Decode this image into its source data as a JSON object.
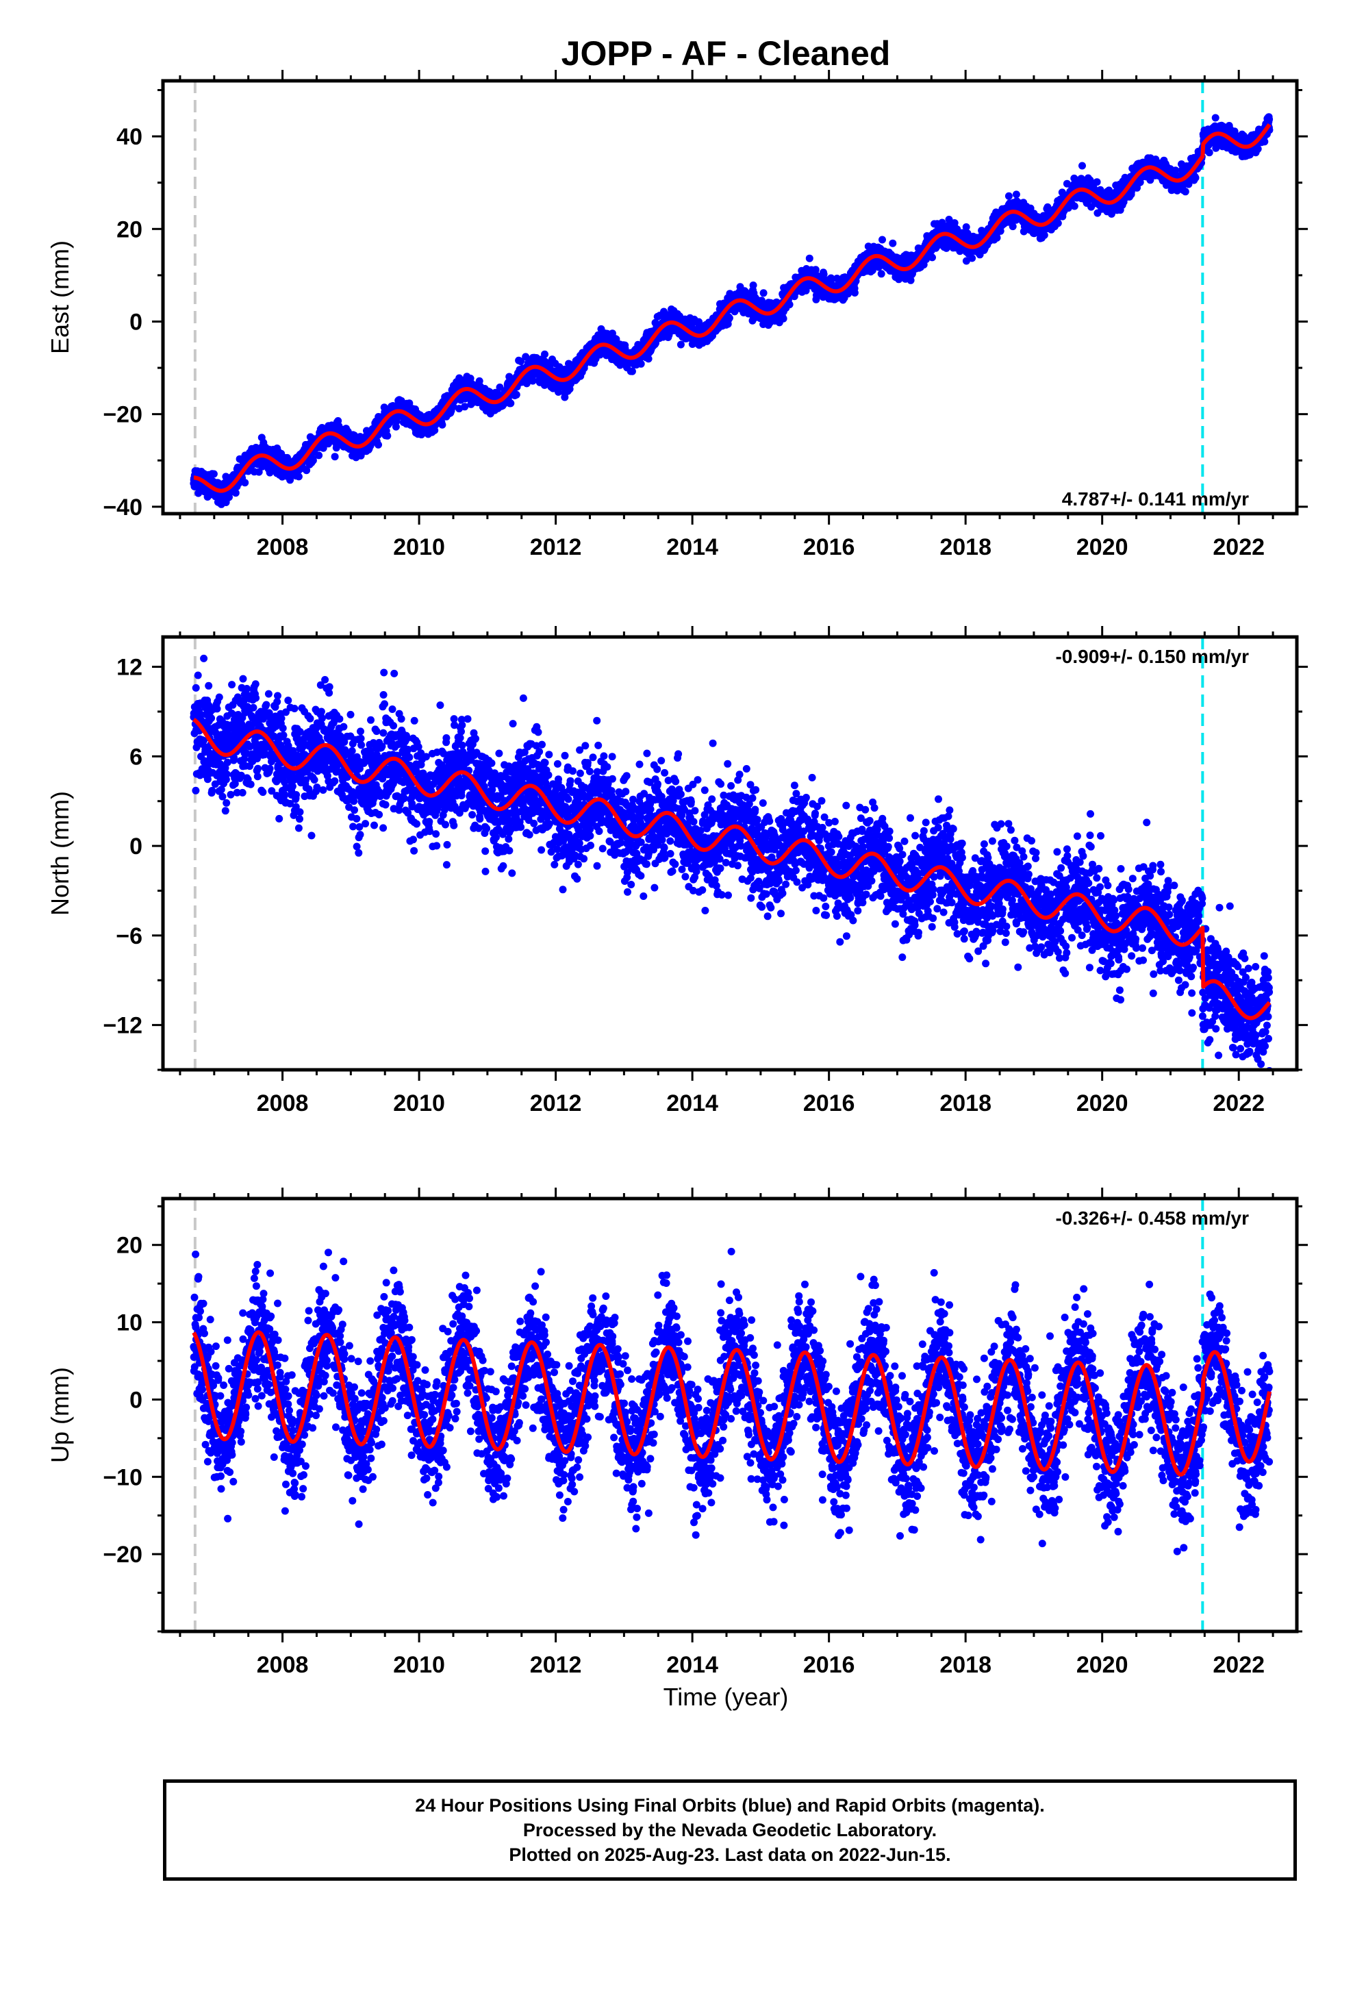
{
  "figure": {
    "title": "JOPP  - AF - Cleaned",
    "x_axis_label": "Time (year)",
    "footer_lines": [
      "24 Hour Positions Using Final Orbits (blue) and Rapid Orbits (magenta).",
      "Processed by the Nevada Geodetic Laboratory.",
      "Plotted on 2025-Aug-23. Last data on 2022-Jun-15."
    ],
    "colors": {
      "final_orbits": "#0000ff",
      "model_fit": "#ff0000",
      "equipment_change_marker": "#00e5ee",
      "start_marker": "#c8c8c8"
    }
  },
  "chart_data": [
    {
      "type": "scatter",
      "panel": "east",
      "ylabel": "East (mm)",
      "rate_label": "4.787+/- 0.141 mm/yr",
      "xlim": [
        2006.25,
        2022.85
      ],
      "ylim": [
        -41.5,
        52.0
      ],
      "x_ticks": [
        2008,
        2010,
        2012,
        2014,
        2016,
        2018,
        2020,
        2022
      ],
      "y_ticks": [
        -40,
        -20,
        0,
        20,
        40
      ],
      "grid": false,
      "markers": [
        {
          "x": 2006.72,
          "style": "gray-dashed"
        },
        {
          "x": 2021.47,
          "style": "cyan-dashed"
        }
      ],
      "trend": {
        "t0": 2006.72,
        "y0": -36.0,
        "rate_mm_yr": 4.787
      },
      "seasonal_amplitude_mm": 2.5,
      "step": {
        "x": 2021.47,
        "offset_mm": 2.5
      },
      "scatter_sd_mm": 1.2,
      "data_span": [
        2006.7,
        2022.45
      ]
    },
    {
      "type": "scatter",
      "panel": "north",
      "ylabel": "North (mm)",
      "rate_label": "-0.909+/- 0.150 mm/yr",
      "xlim": [
        2006.25,
        2022.85
      ],
      "ylim": [
        -15.0,
        14.0
      ],
      "x_ticks": [
        2008,
        2010,
        2012,
        2014,
        2016,
        2018,
        2020,
        2022
      ],
      "y_ticks": [
        -12,
        -6,
        0,
        6,
        12
      ],
      "grid": false,
      "markers": [
        {
          "x": 2006.72,
          "style": "gray-dashed"
        },
        {
          "x": 2021.47,
          "style": "cyan-dashed"
        }
      ],
      "trend": {
        "t0": 2006.72,
        "y0": 7.5,
        "rate_mm_yr": -0.909
      },
      "seasonal_amplitude_mm": 1.0,
      "step": {
        "x": 2021.47,
        "offset_mm": -4.0
      },
      "scatter_sd_mm": 1.6,
      "data_span": [
        2006.7,
        2022.45
      ]
    },
    {
      "type": "scatter",
      "panel": "up",
      "ylabel": "Up (mm)",
      "rate_label": "-0.326+/- 0.458 mm/yr",
      "xlim": [
        2006.25,
        2022.85
      ],
      "ylim": [
        -30.0,
        26.0
      ],
      "x_ticks": [
        2008,
        2010,
        2012,
        2014,
        2016,
        2018,
        2020,
        2022
      ],
      "y_ticks": [
        -20,
        -10,
        0,
        10,
        20
      ],
      "grid": false,
      "markers": [
        {
          "x": 2006.72,
          "style": "gray-dashed"
        },
        {
          "x": 2021.47,
          "style": "cyan-dashed"
        }
      ],
      "trend": {
        "t0": 2006.72,
        "y0": 2.0,
        "rate_mm_yr": -0.326
      },
      "seasonal_amplitude_mm": 7.0,
      "step": {
        "x": 2021.47,
        "offset_mm": 2.0
      },
      "scatter_sd_mm": 3.8,
      "data_span": [
        2006.7,
        2022.45
      ]
    }
  ]
}
